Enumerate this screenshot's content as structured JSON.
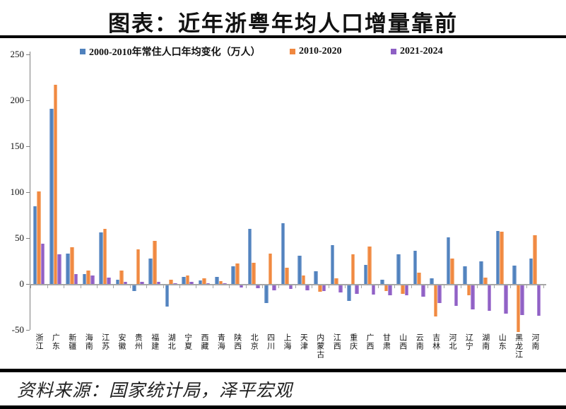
{
  "title": "图表：近年浙粤年均人口增量靠前",
  "source": "资料来源：国家统计局，泽平宏观",
  "colors": {
    "series1_blue": "#4f81bd",
    "series2_orange": "#f0873f",
    "series3_purple": "#8e5fc4",
    "axis_gray": "#a6a6a6",
    "rule_black": "#000000"
  },
  "chart_data": {
    "type": "bar",
    "title": "图表：近年浙粤年均人口增量靠前",
    "xlabel": "",
    "ylabel": "",
    "unit": "万人",
    "ylim": [
      -50,
      250
    ],
    "yticks": [
      250,
      200,
      150,
      100,
      50,
      0,
      -50
    ],
    "grid": false,
    "legend_position": "top",
    "categories": [
      "浙江",
      "广东",
      "新疆",
      "海南",
      "江苏",
      "安徽",
      "贵州",
      "福建",
      "湖北",
      "宁夏",
      "西藏",
      "青海",
      "陕西",
      "北京",
      "四川",
      "上海",
      "天津",
      "内蒙古",
      "江西",
      "重庆",
      "广西",
      "甘肃",
      "山西",
      "云南",
      "吉林",
      "河北",
      "辽宁",
      "湖南",
      "山东",
      "黑龙江",
      "河南"
    ],
    "series": [
      {
        "name": "2000-2010年常住人口年均变化（万人）",
        "color": "#4f81bd",
        "values": [
          85,
          191,
          33,
          11,
          56,
          5,
          -6,
          28,
          -23,
          8,
          4,
          8,
          19,
          60,
          -19,
          66,
          31,
          14,
          42,
          -17,
          21,
          5,
          32,
          36,
          6,
          51,
          19,
          25,
          58,
          20,
          28
        ]
      },
      {
        "name": "2010-2020",
        "color": "#f0873f",
        "values": [
          101,
          217,
          40,
          15,
          60,
          15,
          38,
          47,
          5,
          9,
          6,
          3,
          22,
          23,
          33,
          18,
          9,
          -7,
          6,
          32,
          41,
          -6,
          -9,
          12,
          -34,
          28,
          -11,
          7,
          57,
          -51,
          53
        ]
      },
      {
        "name": "2021-2024",
        "color": "#8e5fc4",
        "values": [
          44,
          32,
          11,
          9,
          7,
          2,
          2,
          2,
          1,
          2,
          1,
          1,
          -2,
          -3,
          -5,
          -4,
          -5,
          -6,
          -8,
          -9,
          -10,
          -11,
          -11,
          -12,
          -19,
          -22,
          -26,
          -28,
          -31,
          -32,
          -33
        ]
      }
    ]
  }
}
